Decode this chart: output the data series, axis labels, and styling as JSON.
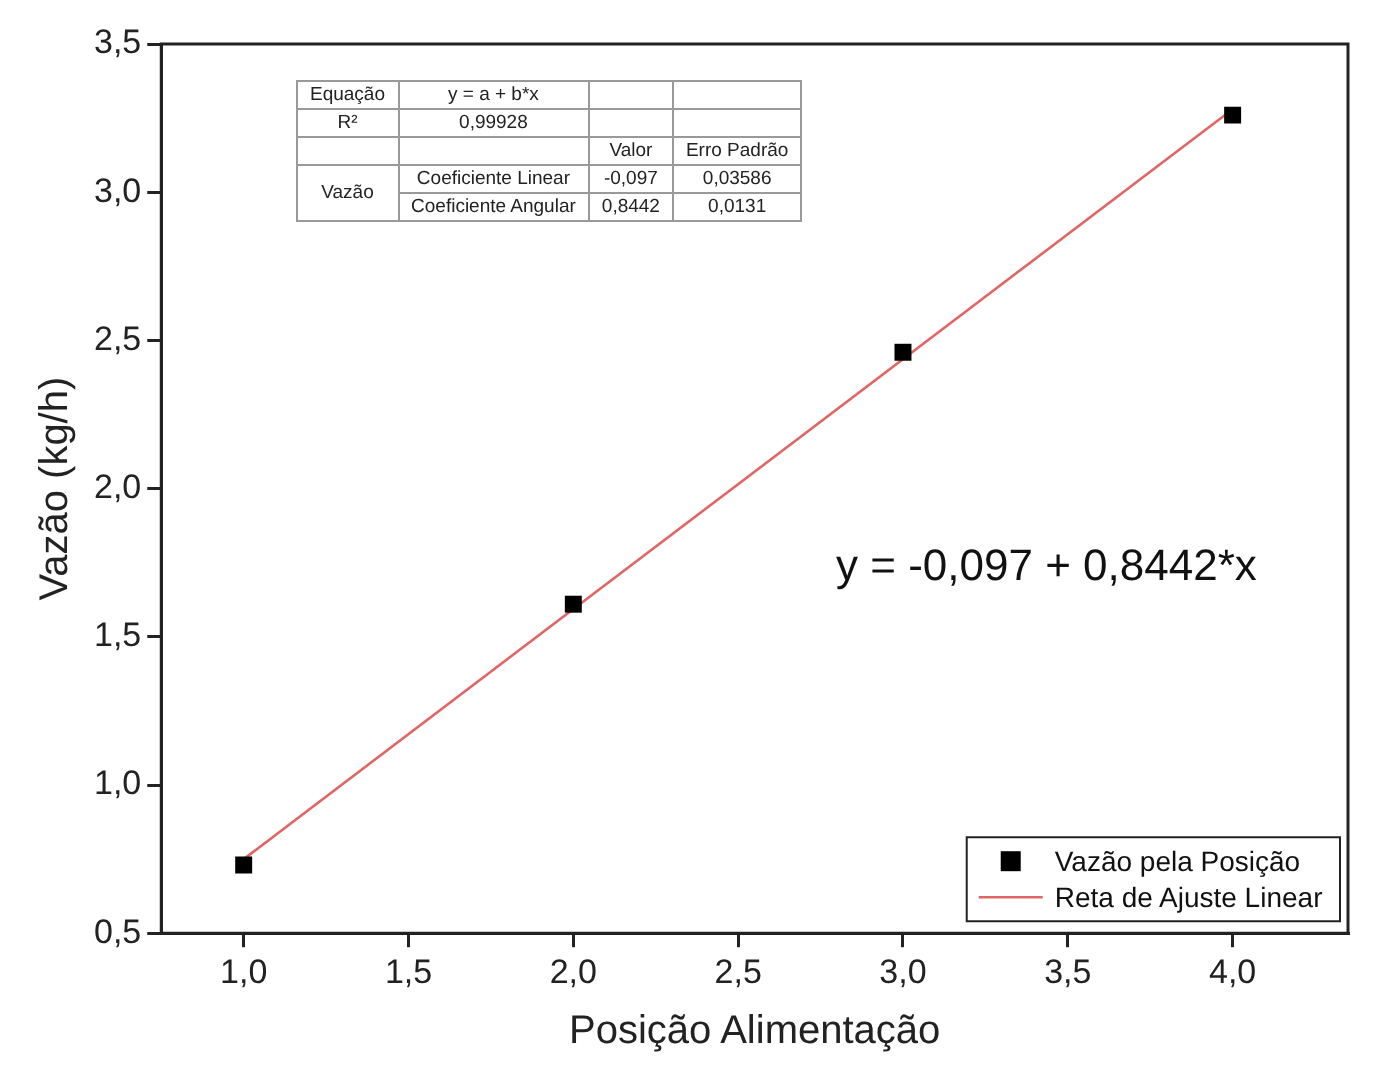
{
  "chart_data": {
    "type": "scatter",
    "xlabel": "Posição Alimentação",
    "ylabel": "Vazão (kg/h)",
    "x": [
      1,
      2,
      3,
      4
    ],
    "series": [
      {
        "name": "Vazão pela Posição",
        "color": "#000000",
        "marker": "square",
        "values": [
          0.73,
          1.61,
          2.46,
          3.26
        ]
      },
      {
        "name": "Reta de Ajuste Linear",
        "type": "line",
        "color": "#e06666",
        "marker": "none",
        "line_style": "solid",
        "x": [
          1,
          4
        ],
        "values": [
          0.75,
          3.28
        ]
      }
    ],
    "xlim": [
      0.75,
      4.35
    ],
    "ylim": [
      0.5,
      3.5
    ],
    "xticks": [
      {
        "value": 1,
        "label": "1,0"
      },
      {
        "value": 1.5,
        "label": "1,5"
      },
      {
        "value": 2,
        "label": "2,0"
      },
      {
        "value": 2.5,
        "label": "2,5"
      },
      {
        "value": 3,
        "label": "3,0"
      },
      {
        "value": 3.5,
        "label": "3,5"
      },
      {
        "value": 4,
        "label": "4,0"
      }
    ],
    "yticks": [
      {
        "value": 0.5,
        "label": "0,5"
      },
      {
        "value": 1,
        "label": "1,0"
      },
      {
        "value": 1.5,
        "label": "1,5"
      },
      {
        "value": 2,
        "label": "2,0"
      },
      {
        "value": 2.5,
        "label": "2,5"
      },
      {
        "value": 3,
        "label": "3,0"
      },
      {
        "value": 3.5,
        "label": "3,5"
      }
    ],
    "grid": false,
    "legend": "bottom right",
    "annotations": [
      "Equação",
      "y = a + b*x",
      "R²",
      "0,99928",
      "Valor",
      "Erro Padrão",
      "Vazão",
      "Coeficiente Linear",
      "-0,097",
      "0,03586",
      "Coeficiente Angular",
      "0,8442",
      "0,0131",
      "y = -0,097 + 0,8442*x"
    ]
  }
}
